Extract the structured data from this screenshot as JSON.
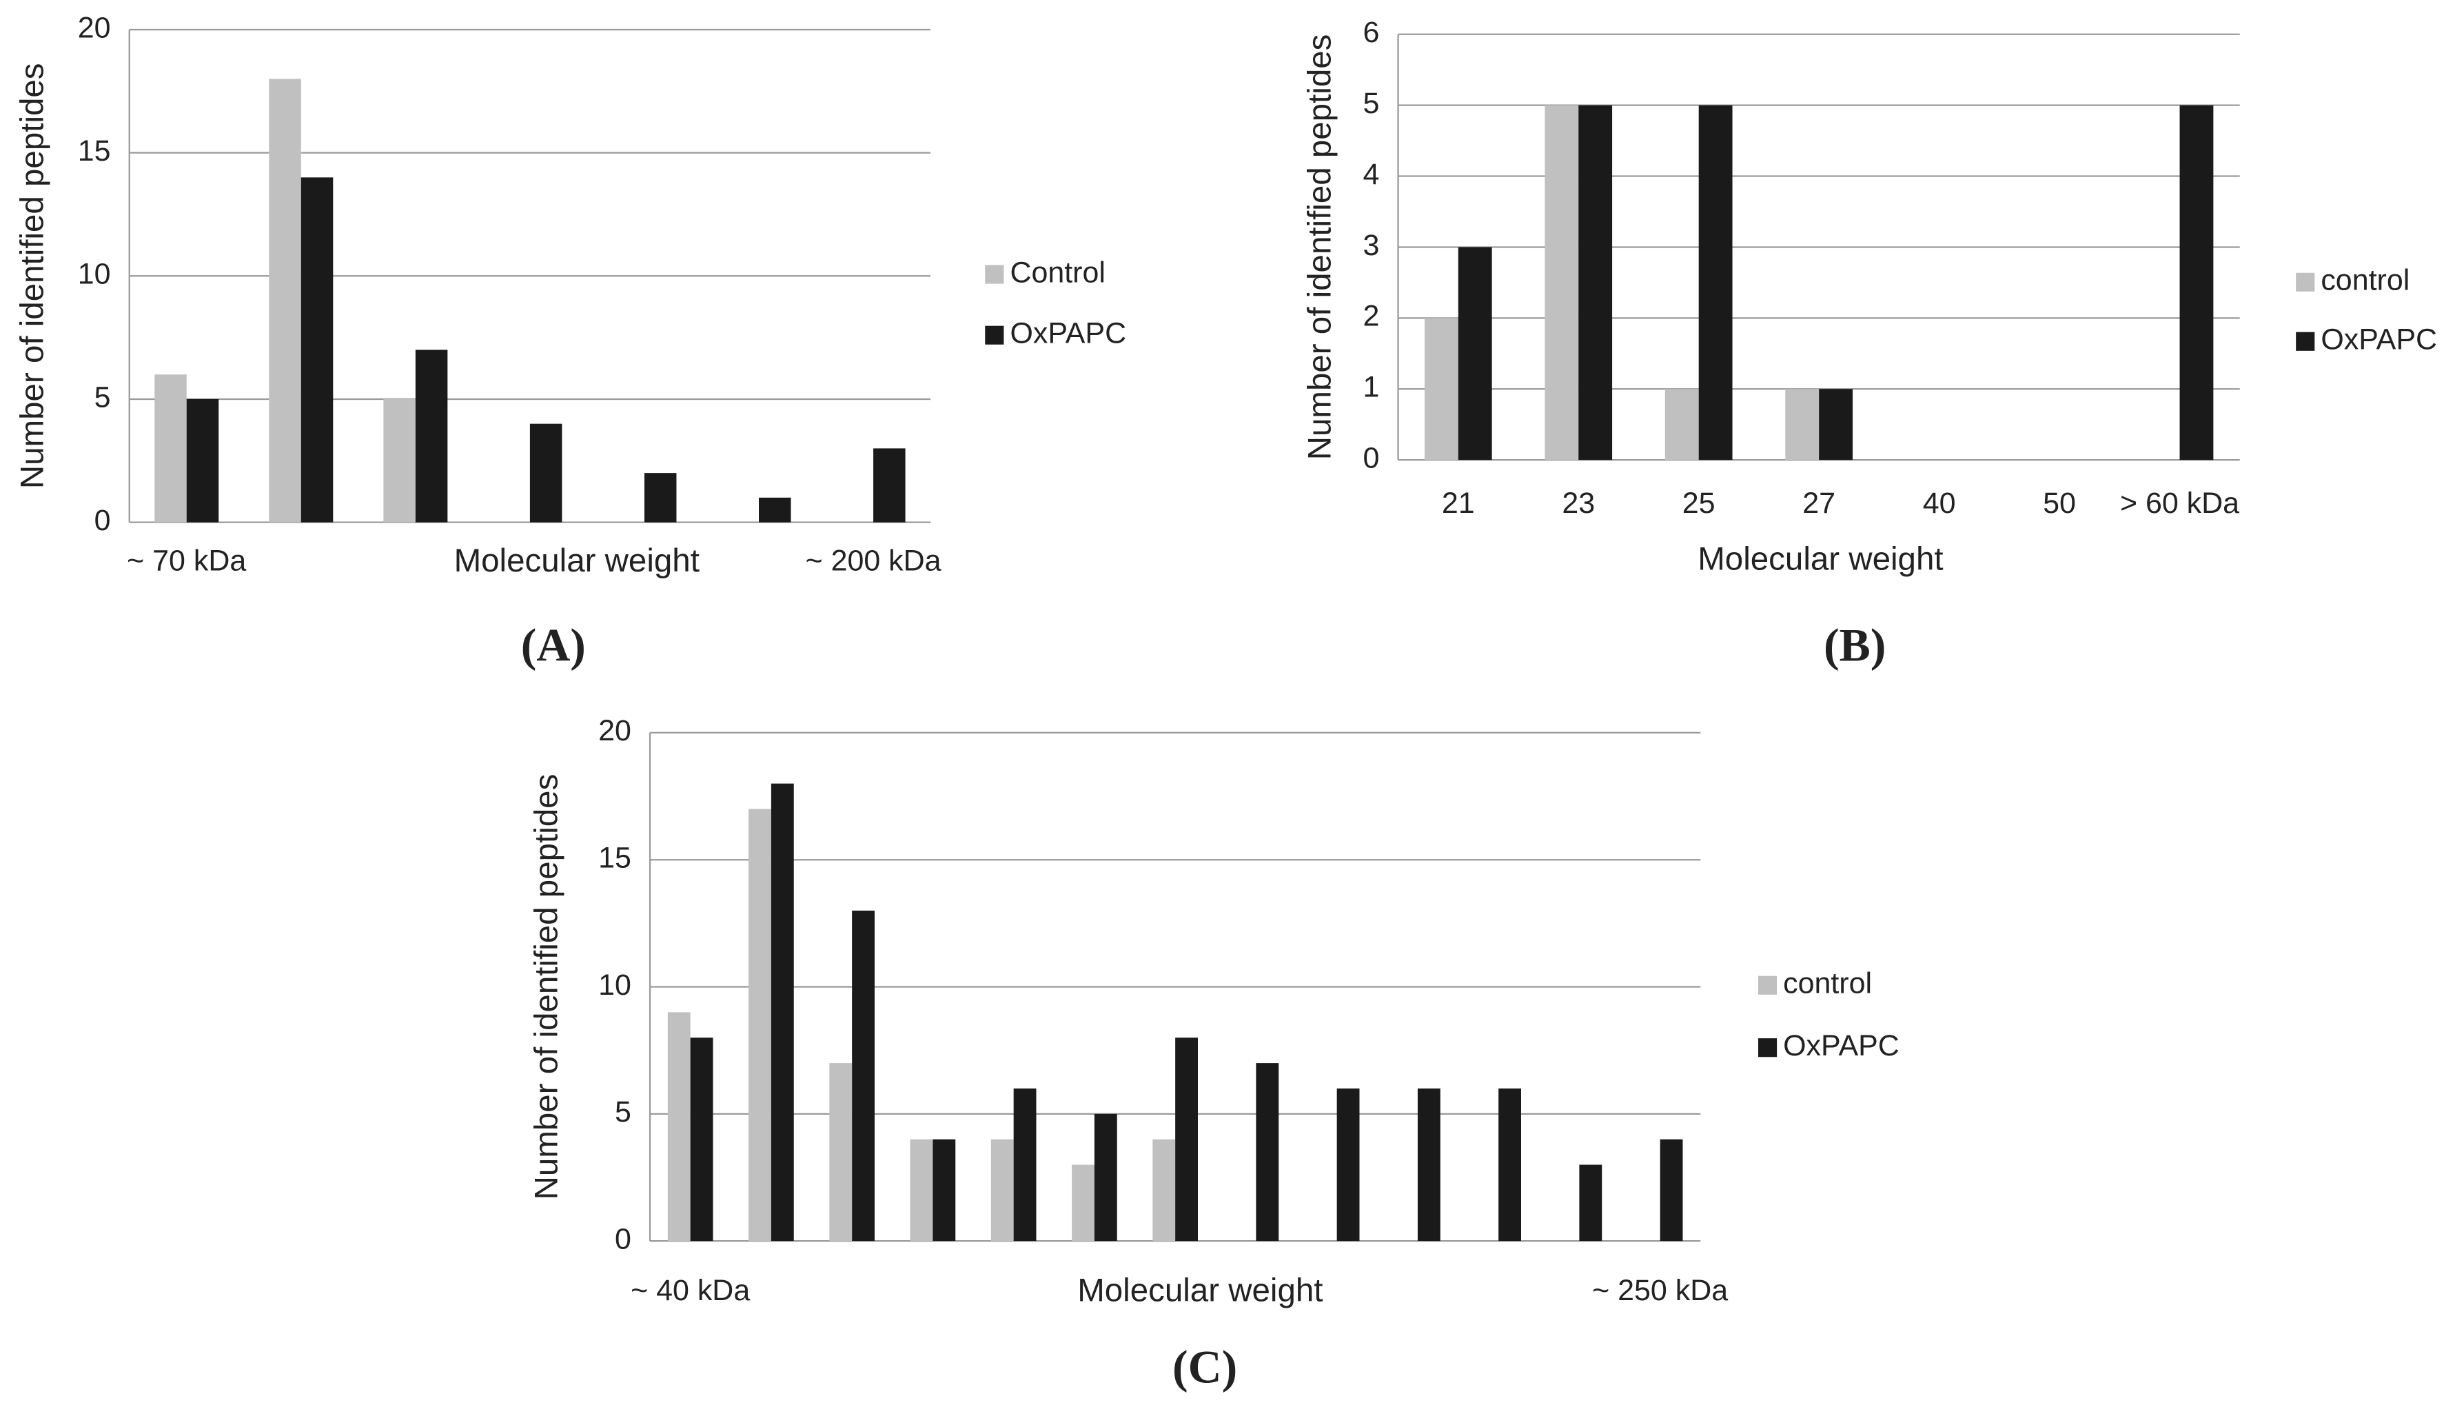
{
  "chart_data": [
    {
      "type": "bar",
      "panel_label": "(A)",
      "x_label": "Molecular weight",
      "y_label": "Number of identified peptides",
      "categories": [
        "~ 70 kDa",
        null,
        null,
        null,
        null,
        null,
        "~ 200 kDa"
      ],
      "series": [
        {
          "name": "Control",
          "color": "#c0c0c0",
          "values": [
            6,
            18,
            5,
            0,
            0,
            0,
            0
          ]
        },
        {
          "name": "OxPAPC",
          "color": "#1a1a1a",
          "values": [
            5,
            14,
            7,
            4,
            2,
            1,
            3
          ]
        }
      ],
      "ylim": [
        0,
        20
      ],
      "yticks": [
        0,
        5,
        10,
        15,
        20
      ],
      "grid": true,
      "legend": "right"
    },
    {
      "type": "bar",
      "panel_label": "(B)",
      "x_label": "Molecular weight",
      "y_label": "Number of identified peptides",
      "categories": [
        "21",
        "23",
        "25",
        "27",
        "40",
        "50",
        "> 60 kDa"
      ],
      "series": [
        {
          "name": "control",
          "color": "#c0c0c0",
          "values": [
            2,
            5,
            1,
            1,
            0,
            0,
            0
          ]
        },
        {
          "name": "OxPAPC",
          "color": "#1a1a1a",
          "values": [
            3,
            5,
            5,
            1,
            0,
            0,
            5
          ]
        }
      ],
      "ylim": [
        0,
        6
      ],
      "yticks": [
        0,
        1,
        2,
        3,
        4,
        5,
        6
      ],
      "grid": true,
      "legend": "right"
    },
    {
      "type": "bar",
      "panel_label": "(C)",
      "x_label": "Molecular weight",
      "y_label": "Number of identified peptides",
      "categories": [
        "~ 40 kDa",
        null,
        null,
        null,
        null,
        null,
        null,
        null,
        null,
        null,
        null,
        null,
        "~ 250 kDa"
      ],
      "series": [
        {
          "name": "control",
          "color": "#c0c0c0",
          "values": [
            9,
            17,
            7,
            4,
            4,
            3,
            4,
            0,
            0,
            0,
            0,
            0,
            0
          ]
        },
        {
          "name": "OxPAPC",
          "color": "#1a1a1a",
          "values": [
            8,
            18,
            13,
            4,
            6,
            5,
            8,
            7,
            6,
            6,
            6,
            3,
            4
          ]
        }
      ],
      "ylim": [
        0,
        20
      ],
      "yticks": [
        0,
        5,
        10,
        15,
        20
      ],
      "grid": true,
      "legend": "right"
    }
  ]
}
